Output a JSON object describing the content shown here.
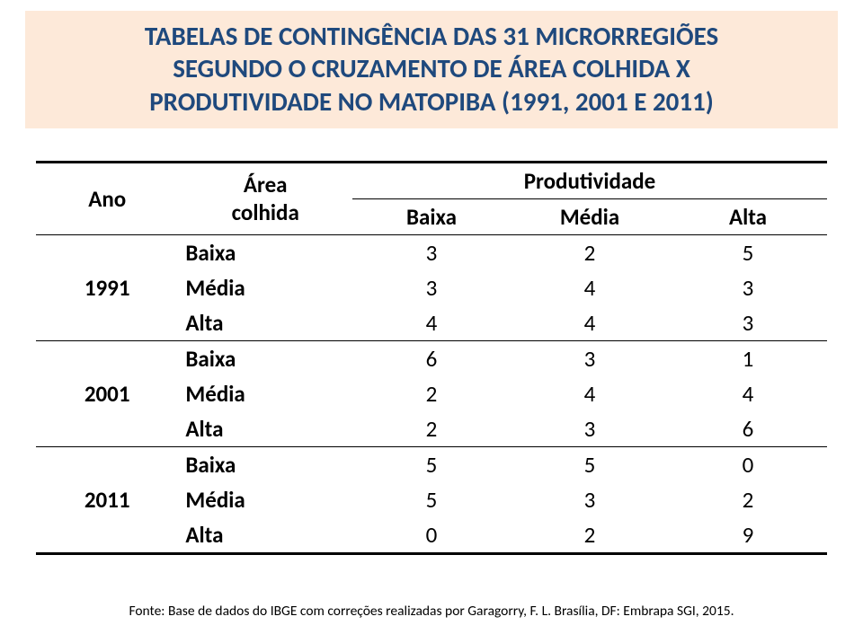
{
  "title": {
    "color": "#1f497d",
    "bg": "#fde9d9",
    "line1": "TABELAS DE CONTINGÊNCIA DAS 31 MICRORREGIÕES",
    "line2": "SEGUNDO O CRUZAMENTO DE ÁREA COLHIDA X",
    "line3": "PRODUTIVIDADE NO MATOPIBA (1991, 2001 E 2011)"
  },
  "table": {
    "header": {
      "ano": "Ano",
      "area_line1": "Área",
      "area_line2": "colhida",
      "prod": "Produtividade",
      "baixa": "Baixa",
      "media": "Média",
      "alta": "Alta"
    },
    "groups": [
      {
        "year": "1991",
        "rows": [
          {
            "label": "Baixa",
            "v": [
              "3",
              "2",
              "5"
            ]
          },
          {
            "label": "Média",
            "v": [
              "3",
              "4",
              "3"
            ]
          },
          {
            "label": "Alta",
            "v": [
              "4",
              "4",
              "3"
            ]
          }
        ]
      },
      {
        "year": "2001",
        "rows": [
          {
            "label": "Baixa",
            "v": [
              "6",
              "3",
              "1"
            ]
          },
          {
            "label": "Média",
            "v": [
              "2",
              "4",
              "4"
            ]
          },
          {
            "label": "Alta",
            "v": [
              "2",
              "3",
              "6"
            ]
          }
        ]
      },
      {
        "year": "2011",
        "rows": [
          {
            "label": "Baixa",
            "v": [
              "5",
              "5",
              "0"
            ]
          },
          {
            "label": "Média",
            "v": [
              "5",
              "3",
              "2"
            ]
          },
          {
            "label": "Alta",
            "v": [
              "0",
              "2",
              "9"
            ]
          }
        ]
      }
    ]
  },
  "footer": "Fonte: Base de dados do IBGE com correções realizadas por Garagorry, F. L. Brasília, DF: Embrapa SGI, 2015."
}
